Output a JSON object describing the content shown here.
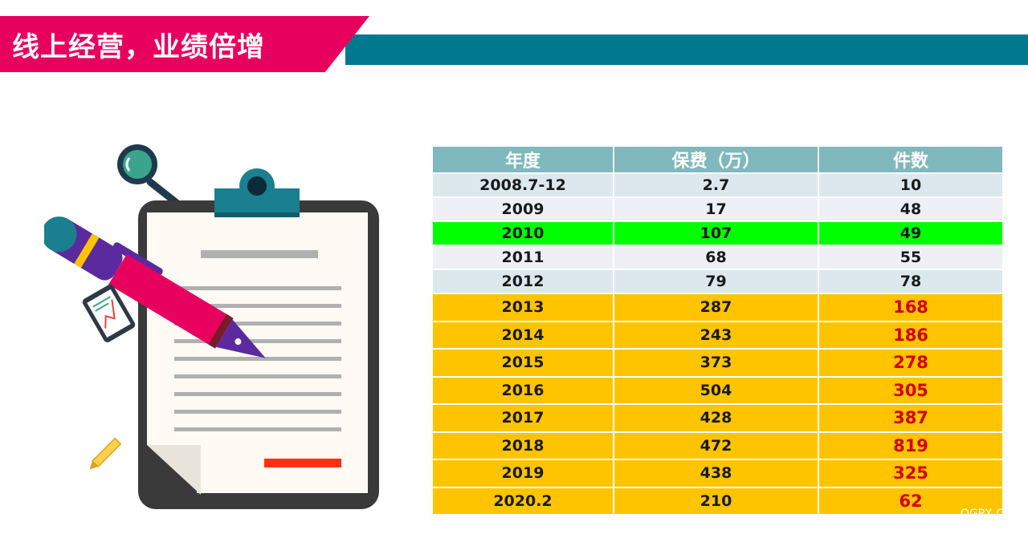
{
  "header": {
    "title": "线上经营，业绩倍增"
  },
  "table": {
    "headers": [
      "年度",
      "保费（万）",
      "件数"
    ],
    "rows": [
      {
        "year": "2008.7-12",
        "premium": "2.7",
        "count": "10"
      },
      {
        "year": "2009",
        "premium": "17",
        "count": "48"
      },
      {
        "year": "2010",
        "premium": "107",
        "count": "49"
      },
      {
        "year": "2011",
        "premium": "68",
        "count": "55"
      },
      {
        "year": "2012",
        "premium": "79",
        "count": "78"
      },
      {
        "year": "2013",
        "premium": "287",
        "count": "168"
      },
      {
        "year": "2014",
        "premium": "243",
        "count": "186"
      },
      {
        "year": "2015",
        "premium": "373",
        "count": "278"
      },
      {
        "year": "2016",
        "premium": "504",
        "count": "305"
      },
      {
        "year": "2017",
        "premium": "428",
        "count": "387"
      },
      {
        "year": "2018",
        "premium": "472",
        "count": "819"
      },
      {
        "year": "2019",
        "premium": "438",
        "count": "325"
      },
      {
        "year": "2020.2",
        "premium": "210",
        "count": "62"
      }
    ]
  },
  "watermark": "OGPX.C",
  "colors": {
    "banner_pink": "#e8005f",
    "banner_teal": "#00788d",
    "highlight_green": "#00ff00",
    "highlight_gold": "#ffc400",
    "count_red": "#d40000"
  },
  "icons": [
    "magnifier-icon",
    "clipboard-icon",
    "pen-icon",
    "phone-chart-icon",
    "pencil-icon"
  ]
}
